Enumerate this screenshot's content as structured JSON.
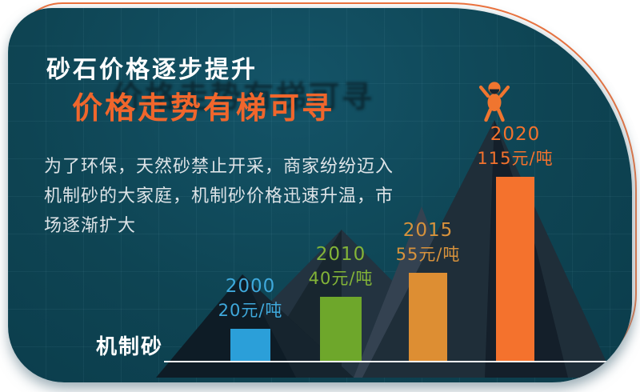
{
  "header": {
    "title": "砂石价格逐步提升",
    "subtitle": "价格走势有梯可寻"
  },
  "description_lines": [
    "为了环保，天然砂禁止开采，商家纷纷迈入",
    "机制砂的大家庭，机制砂价格迅速升温，市",
    "场逐渐扩大"
  ],
  "axis_label": "机制砂",
  "chart_data": {
    "type": "bar",
    "title": "砂石价格逐步提升",
    "subtitle": "价格走势有梯可寻",
    "categories": [
      "2000",
      "2010",
      "2015",
      "2020"
    ],
    "values": [
      20,
      40,
      55,
      115
    ],
    "unit": "元/吨",
    "series_label": "机制砂",
    "bars": [
      {
        "year": "2000",
        "price": "20元/吨",
        "value": 20,
        "color": "#2b9fd9",
        "label_color": "#3fa9dc"
      },
      {
        "year": "2010",
        "price": "40元/吨",
        "value": 40,
        "color": "#6ea72b",
        "label_color": "#83b438"
      },
      {
        "year": "2015",
        "price": "55元/吨",
        "value": 55,
        "color": "#dd8e33",
        "label_color": "#d7923c"
      },
      {
        "year": "2020",
        "price": "115元/吨",
        "value": 115,
        "color": "#f4722d",
        "label_color": "#f4722d"
      }
    ]
  },
  "colors": {
    "card_background": "#0e4453",
    "accent_border": "#f0713a",
    "title_text": "#ffffff",
    "subtitle_text": "#f0662c",
    "body_text": "#dde3e7",
    "baseline": "#ffffff",
    "climber": "#f0752f"
  }
}
